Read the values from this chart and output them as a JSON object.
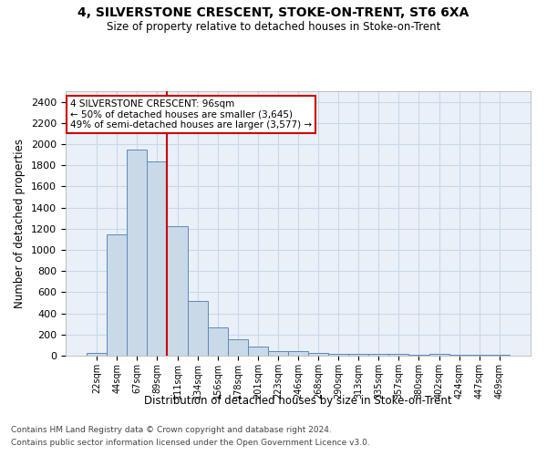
{
  "title": "4, SILVERSTONE CRESCENT, STOKE-ON-TRENT, ST6 6XA",
  "subtitle": "Size of property relative to detached houses in Stoke-on-Trent",
  "xlabel": "Distribution of detached houses by size in Stoke-on-Trent",
  "ylabel": "Number of detached properties",
  "footnote1": "Contains HM Land Registry data © Crown copyright and database right 2024.",
  "footnote2": "Contains public sector information licensed under the Open Government Licence v3.0.",
  "bin_labels": [
    "22sqm",
    "44sqm",
    "67sqm",
    "89sqm",
    "111sqm",
    "134sqm",
    "156sqm",
    "178sqm",
    "201sqm",
    "223sqm",
    "246sqm",
    "268sqm",
    "290sqm",
    "313sqm",
    "335sqm",
    "357sqm",
    "380sqm",
    "402sqm",
    "424sqm",
    "447sqm",
    "469sqm"
  ],
  "bar_values": [
    30,
    1150,
    1950,
    1840,
    1220,
    515,
    265,
    155,
    85,
    45,
    40,
    25,
    20,
    20,
    18,
    15,
    12,
    20,
    10,
    8,
    5
  ],
  "bar_color": "#c9d9e8",
  "bar_edge_color": "#5a8abf",
  "grid_color": "#c8d8e8",
  "background_color": "#eaf0f8",
  "vline_x_index": 3,
  "vline_color": "#cc0000",
  "annotation_text": "4 SILVERSTONE CRESCENT: 96sqm\n← 50% of detached houses are smaller (3,645)\n49% of semi-detached houses are larger (3,577) →",
  "annotation_box_color": "#ffffff",
  "annotation_box_edge_color": "#cc0000",
  "ylim": [
    0,
    2500
  ],
  "yticks": [
    0,
    200,
    400,
    600,
    800,
    1000,
    1200,
    1400,
    1600,
    1800,
    2000,
    2200,
    2400
  ]
}
